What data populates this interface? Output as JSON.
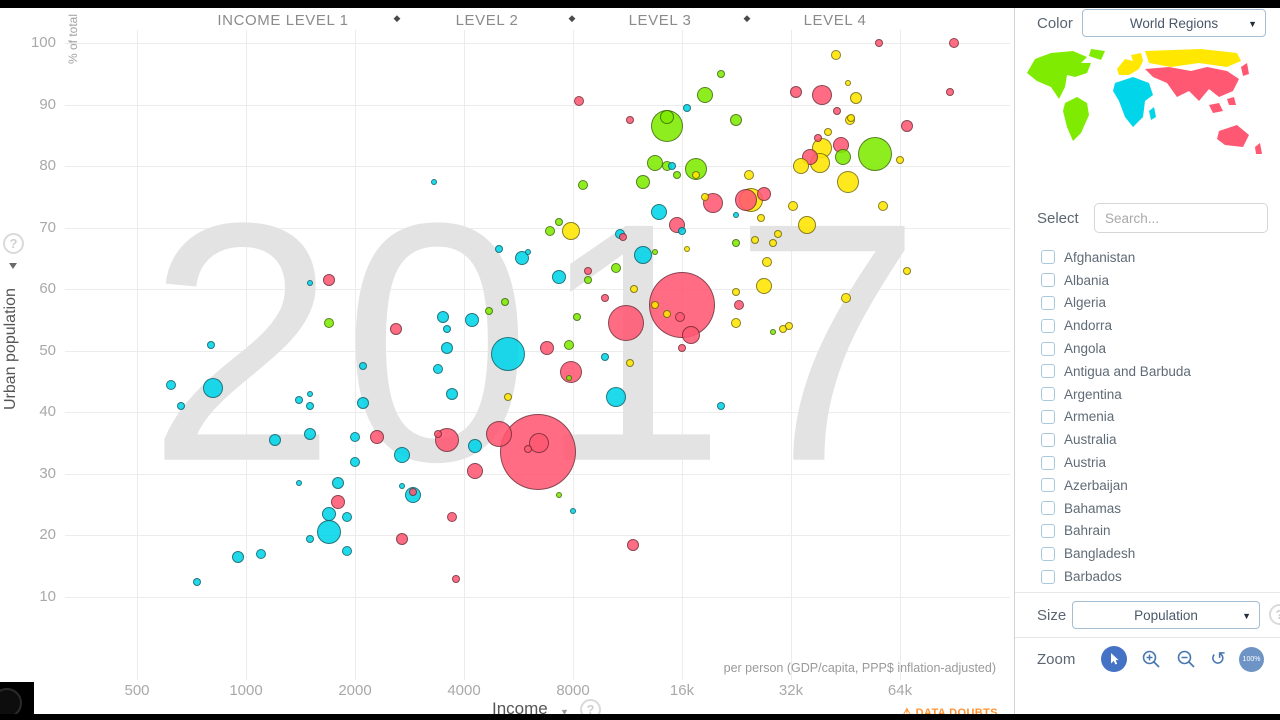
{
  "icons": {
    "diamond": "◆",
    "dropdown_arrow": "▼",
    "help": "?",
    "warning": "⚠",
    "reset": "↺"
  },
  "chart_data": {
    "type": "scatter",
    "year": "2017",
    "x": {
      "label": "Income",
      "unit_note": "per person (GDP/capita, PPP$ inflation-adjusted)",
      "scale": "log",
      "ticks": [
        {
          "label": "500",
          "value": 500
        },
        {
          "label": "1000",
          "value": 1000
        },
        {
          "label": "2000",
          "value": 2000
        },
        {
          "label": "4000",
          "value": 4000
        },
        {
          "label": "8000",
          "value": 8000
        },
        {
          "label": "16k",
          "value": 16000
        },
        {
          "label": "32k",
          "value": 32000
        },
        {
          "label": "64k",
          "value": 64000
        }
      ]
    },
    "y": {
      "label": "Urban population",
      "unit": "% of total",
      "ticks": [
        10,
        20,
        30,
        40,
        50,
        60,
        70,
        80,
        90,
        100
      ]
    },
    "income_levels": [
      "INCOME LEVEL 1",
      "LEVEL 2",
      "LEVEL 3",
      "LEVEL 4"
    ],
    "regions": {
      "asia": {
        "color": "#ff5872"
      },
      "europe": {
        "color": "#ffe700"
      },
      "africa": {
        "color": "#00d5e9"
      },
      "americas": {
        "color": "#7feb00"
      }
    },
    "bubble_fields": [
      "income_dollars",
      "urban_percent",
      "radius_px",
      "region"
    ],
    "bubbles": [
      [
        16000,
        57.5,
        33,
        "asia"
      ],
      [
        6400,
        33.5,
        38,
        "asia"
      ],
      [
        11200,
        54.5,
        18,
        "asia"
      ],
      [
        5000,
        36.5,
        13,
        "asia"
      ],
      [
        3600,
        35.5,
        12,
        "asia"
      ],
      [
        39000,
        91.5,
        10,
        "asia"
      ],
      [
        7900,
        46.5,
        11,
        "asia"
      ],
      [
        6450,
        35,
        10,
        "asia"
      ],
      [
        24000,
        74.5,
        11,
        "asia"
      ],
      [
        19500,
        74,
        10,
        "asia"
      ],
      [
        16900,
        52.5,
        9,
        "asia"
      ],
      [
        36000,
        81.5,
        8,
        "asia"
      ],
      [
        44000,
        83.5,
        8,
        "asia"
      ],
      [
        15500,
        70.5,
        8,
        "asia"
      ],
      [
        26900,
        75.5,
        7,
        "asia"
      ],
      [
        1800,
        25.5,
        7,
        "asia"
      ],
      [
        2700,
        19.5,
        6,
        "asia"
      ],
      [
        4300,
        30.5,
        8,
        "asia"
      ],
      [
        6800,
        50.5,
        7,
        "asia"
      ],
      [
        11700,
        18.5,
        6,
        "asia"
      ],
      [
        2300,
        36,
        7,
        "asia"
      ],
      [
        2600,
        53.5,
        6,
        "asia"
      ],
      [
        90000,
        100,
        5,
        "asia"
      ],
      [
        67000,
        86.5,
        6,
        "asia"
      ],
      [
        88000,
        92,
        4,
        "asia"
      ],
      [
        33000,
        92,
        6,
        "asia"
      ],
      [
        8300,
        90.5,
        5,
        "asia"
      ],
      [
        11500,
        87.5,
        4,
        "asia"
      ],
      [
        15800,
        55.5,
        5,
        "asia"
      ],
      [
        23000,
        57.5,
        5,
        "asia"
      ],
      [
        3700,
        23,
        5,
        "asia"
      ],
      [
        6000,
        34,
        4,
        "asia"
      ],
      [
        2900,
        27,
        4,
        "asia"
      ],
      [
        3400,
        36.5,
        4,
        "asia"
      ],
      [
        11000,
        68.5,
        4,
        "asia"
      ],
      [
        38000,
        84.5,
        4,
        "asia"
      ],
      [
        43000,
        89,
        4,
        "asia"
      ],
      [
        3800,
        13,
        4,
        "asia"
      ],
      [
        1700,
        61.5,
        6,
        "asia"
      ],
      [
        8800,
        63,
        4,
        "asia"
      ],
      [
        9800,
        58.5,
        4,
        "asia"
      ],
      [
        16000,
        50.5,
        4,
        "asia"
      ],
      [
        56000,
        100,
        4,
        "asia"
      ],
      [
        46000,
        77.5,
        11,
        "europe"
      ],
      [
        39000,
        83,
        10,
        "europe"
      ],
      [
        38500,
        80.5,
        10,
        "europe"
      ],
      [
        35500,
        70.5,
        9,
        "europe"
      ],
      [
        34000,
        80,
        8,
        "europe"
      ],
      [
        24800,
        74.5,
        12,
        "europe"
      ],
      [
        27000,
        60.5,
        8,
        "europe"
      ],
      [
        7900,
        69.5,
        9,
        "europe"
      ],
      [
        48500,
        91,
        6,
        "europe"
      ],
      [
        42500,
        98,
        5,
        "europe"
      ],
      [
        24500,
        78.5,
        5,
        "europe"
      ],
      [
        27500,
        64.5,
        5,
        "europe"
      ],
      [
        46500,
        87.5,
        5,
        "europe"
      ],
      [
        57500,
        73.5,
        5,
        "europe"
      ],
      [
        45500,
        58.5,
        5,
        "europe"
      ],
      [
        32500,
        73.5,
        5,
        "europe"
      ],
      [
        26500,
        71.5,
        4,
        "europe"
      ],
      [
        17500,
        78.5,
        4,
        "europe"
      ],
      [
        22500,
        54.5,
        5,
        "europe"
      ],
      [
        18500,
        75,
        4,
        "europe"
      ],
      [
        14500,
        56,
        4,
        "europe"
      ],
      [
        46800,
        87.8,
        4,
        "europe"
      ],
      [
        40500,
        85.5,
        4,
        "europe"
      ],
      [
        64000,
        81,
        4,
        "europe"
      ],
      [
        67000,
        63,
        4,
        "europe"
      ],
      [
        22500,
        59.5,
        4,
        "europe"
      ],
      [
        11500,
        48,
        4,
        "europe"
      ],
      [
        11800,
        60,
        4,
        "europe"
      ],
      [
        30500,
        53.5,
        4,
        "europe"
      ],
      [
        28500,
        67.5,
        4,
        "europe"
      ],
      [
        25500,
        68,
        4,
        "europe"
      ],
      [
        29500,
        69,
        4,
        "europe"
      ],
      [
        31500,
        54,
        4,
        "europe"
      ],
      [
        13500,
        57.5,
        4,
        "europe"
      ],
      [
        16500,
        66.5,
        3,
        "europe"
      ],
      [
        46000,
        93.5,
        3,
        "europe"
      ],
      [
        5300,
        42.5,
        4,
        "europe"
      ],
      [
        54500,
        82,
        17,
        "americas"
      ],
      [
        14500,
        86.5,
        16,
        "americas"
      ],
      [
        17500,
        79.5,
        11,
        "americas"
      ],
      [
        13500,
        80.5,
        8,
        "americas"
      ],
      [
        18500,
        91.5,
        8,
        "americas"
      ],
      [
        44500,
        81.5,
        8,
        "americas"
      ],
      [
        12500,
        77.5,
        7,
        "americas"
      ],
      [
        14500,
        88,
        7,
        "americas"
      ],
      [
        22500,
        87.5,
        6,
        "americas"
      ],
      [
        10500,
        63.5,
        5,
        "americas"
      ],
      [
        7800,
        51,
        5,
        "americas"
      ],
      [
        8500,
        77,
        5,
        "americas"
      ],
      [
        6900,
        69.5,
        5,
        "americas"
      ],
      [
        14500,
        80,
        5,
        "americas"
      ],
      [
        1700,
        54.5,
        5,
        "americas"
      ],
      [
        4700,
        56.5,
        4,
        "americas"
      ],
      [
        8800,
        61.5,
        4,
        "americas"
      ],
      [
        5200,
        58,
        4,
        "americas"
      ],
      [
        7300,
        71,
        4,
        "americas"
      ],
      [
        15500,
        78.5,
        4,
        "americas"
      ],
      [
        22500,
        67.5,
        4,
        "americas"
      ],
      [
        20500,
        95,
        4,
        "americas"
      ],
      [
        8200,
        55.5,
        4,
        "americas"
      ],
      [
        28500,
        53,
        3,
        "americas"
      ],
      [
        7300,
        26.5,
        3,
        "americas"
      ],
      [
        13500,
        66,
        3,
        "americas"
      ],
      [
        7800,
        45.5,
        3,
        "americas"
      ],
      [
        5300,
        49.5,
        17,
        "africa"
      ],
      [
        10500,
        42.5,
        10,
        "africa"
      ],
      [
        1700,
        20.5,
        12,
        "africa"
      ],
      [
        810,
        44,
        10,
        "africa"
      ],
      [
        12500,
        65.5,
        9,
        "africa"
      ],
      [
        2700,
        33,
        8,
        "africa"
      ],
      [
        2900,
        26.5,
        8,
        "africa"
      ],
      [
        13800,
        72.5,
        8,
        "africa"
      ],
      [
        4300,
        34.5,
        7,
        "africa"
      ],
      [
        7300,
        62,
        7,
        "africa"
      ],
      [
        5800,
        65,
        7,
        "africa"
      ],
      [
        4200,
        55,
        7,
        "africa"
      ],
      [
        1200,
        35.5,
        6,
        "africa"
      ],
      [
        1500,
        36.5,
        6,
        "africa"
      ],
      [
        3500,
        55.5,
        6,
        "africa"
      ],
      [
        3600,
        50.5,
        6,
        "africa"
      ],
      [
        950,
        16.5,
        6,
        "africa"
      ],
      [
        1800,
        28.5,
        6,
        "africa"
      ],
      [
        2100,
        41.5,
        6,
        "africa"
      ],
      [
        1100,
        17,
        5,
        "africa"
      ],
      [
        3700,
        43,
        6,
        "africa"
      ],
      [
        3400,
        47,
        5,
        "africa"
      ],
      [
        1900,
        23,
        5,
        "africa"
      ],
      [
        620,
        44.5,
        5,
        "africa"
      ],
      [
        2000,
        32,
        5,
        "africa"
      ],
      [
        2000,
        36,
        5,
        "africa"
      ],
      [
        1900,
        17.5,
        5,
        "africa"
      ],
      [
        2100,
        47.5,
        4,
        "africa"
      ],
      [
        730,
        12.5,
        4,
        "africa"
      ],
      [
        1700,
        23.5,
        7,
        "africa"
      ],
      [
        1500,
        19.5,
        4,
        "africa"
      ],
      [
        1500,
        41,
        4,
        "africa"
      ],
      [
        1400,
        42,
        4,
        "africa"
      ],
      [
        15000,
        80,
        4,
        "africa"
      ],
      [
        10800,
        69,
        5,
        "africa"
      ],
      [
        20500,
        41,
        4,
        "africa"
      ],
      [
        9800,
        49,
        4,
        "africa"
      ],
      [
        16000,
        69.5,
        4,
        "africa"
      ],
      [
        16500,
        89.5,
        4,
        "africa"
      ],
      [
        5000,
        66.5,
        4,
        "africa"
      ],
      [
        3600,
        53.5,
        4,
        "africa"
      ],
      [
        800,
        51,
        4,
        "africa"
      ],
      [
        660,
        41,
        4,
        "africa"
      ],
      [
        2700,
        28,
        3,
        "africa"
      ],
      [
        1500,
        61,
        3,
        "africa"
      ],
      [
        1500,
        43,
        3,
        "africa"
      ],
      [
        22500,
        72,
        3,
        "africa"
      ],
      [
        3300,
        77.5,
        3,
        "africa"
      ],
      [
        1400,
        28.5,
        3,
        "africa"
      ],
      [
        8000,
        24,
        3,
        "africa"
      ],
      [
        6000,
        66,
        3,
        "africa"
      ]
    ]
  },
  "sidebar": {
    "color_label": "Color",
    "color_dropdown": "World Regions",
    "select_label": "Select",
    "search_placeholder": "Search...",
    "countries": [
      "Afghanistan",
      "Albania",
      "Algeria",
      "Andorra",
      "Angola",
      "Antigua and Barbuda",
      "Argentina",
      "Armenia",
      "Australia",
      "Austria",
      "Azerbaijan",
      "Bahamas",
      "Bahrain",
      "Bangladesh",
      "Barbados"
    ],
    "size_label": "Size",
    "size_dropdown": "Population",
    "zoom_label": "Zoom",
    "zoom_value": "100%"
  },
  "footer": {
    "data_doubts": "DATA DOUBTS"
  }
}
